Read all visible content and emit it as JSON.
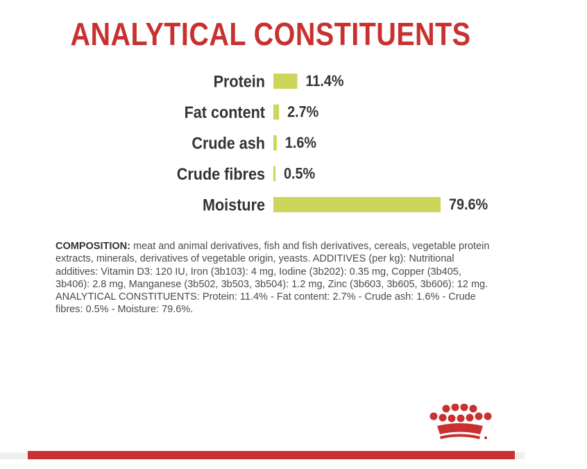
{
  "title": "ANALYTICAL CONSTITUENTS",
  "colors": {
    "title": "#c8312f",
    "bar": "#cdd65a",
    "label": "#333333",
    "brand": "#c8312f"
  },
  "chart_data": {
    "type": "bar",
    "orientation": "horizontal",
    "categories": [
      "Protein",
      "Fat content",
      "Crude ash",
      "Crude fibres",
      "Moisture"
    ],
    "values": [
      11.4,
      2.7,
      1.6,
      0.5,
      79.6
    ],
    "value_labels": [
      "11.4%",
      "2.7%",
      "1.6%",
      "0.5%",
      "79.6%"
    ],
    "unit": "%",
    "xlim": [
      0,
      79.6
    ],
    "grid": false,
    "legend": "none"
  },
  "composition": {
    "label": "COMPOSITION:",
    "text": " meat and animal derivatives, fish and fish derivatives, cereals, vegetable protein extracts, minerals, derivatives of vegetable origin, yeasts. ADDITIVES (per kg): Nutritional additives: Vitamin D3: 120 IU, Iron (3b103): 4 mg, Iodine (3b202): 0.35 mg, Copper (3b405, 3b406): 2.8 mg, Manganese (3b502, 3b503, 3b504): 1.2 mg, Zinc (3b603, 3b605, 3b606): 12 mg. ANALYTICAL CONSTITUENTS: Protein: 11.4% - Fat content: 2.7% - Crude ash: 1.6% - Crude fibres: 0.5% - Moisture: 79.6%."
  },
  "logo": {
    "icon": "royal-canin-crown-icon"
  }
}
